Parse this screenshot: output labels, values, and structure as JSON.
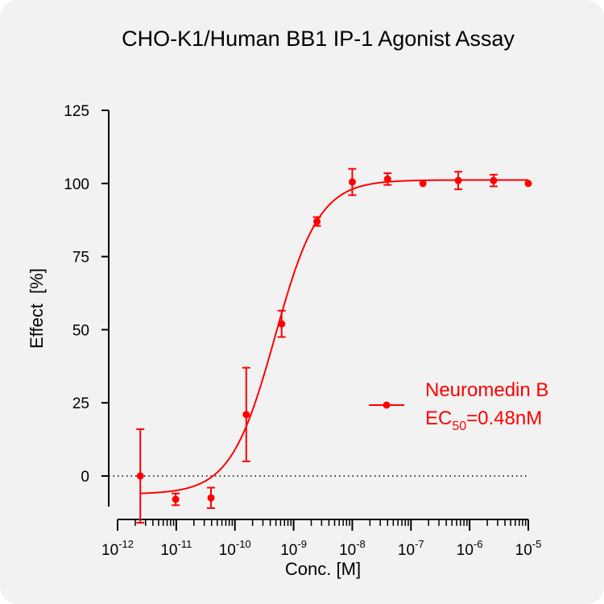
{
  "chart_data": {
    "type": "scatter",
    "title": "CHO-K1/Human BB1 IP-1 Agonist Assay",
    "xlabel": "Conc. [M]",
    "ylabel": "Effect  [%]",
    "x_scale": "log",
    "xlim_exp": [
      -12,
      -5
    ],
    "ylim": [
      -10,
      125
    ],
    "y_ticks": [
      0,
      25,
      50,
      75,
      100,
      125
    ],
    "x_tick_labels": [
      {
        "base": "10",
        "exp": "-12"
      },
      {
        "base": "10",
        "exp": "-11"
      },
      {
        "base": "10",
        "exp": "-10"
      },
      {
        "base": "10",
        "exp": "-9"
      },
      {
        "base": "10",
        "exp": "-8"
      },
      {
        "base": "10",
        "exp": "-7"
      },
      {
        "base": "10",
        "exp": "-6"
      },
      {
        "base": "10",
        "exp": "-5"
      }
    ],
    "baseline": 0,
    "series": [
      {
        "name": "Neuromedin B",
        "color": "#ff0000",
        "x": [
          2.44e-12,
          9.77e-12,
          3.91e-11,
          1.56e-10,
          6.25e-10,
          2.5e-09,
          1e-08,
          4e-08,
          1.6e-07,
          6.4e-07,
          2.56e-06,
          1e-05
        ],
        "y": [
          0,
          -8,
          -7.5,
          21,
          52,
          87,
          100.5,
          101.5,
          100,
          101,
          101,
          100
        ],
        "error": [
          16,
          2,
          3.5,
          16,
          4.5,
          1.5,
          4.5,
          2,
          0.5,
          3,
          2,
          0.5
        ],
        "fit": {
          "bottom": -6.2,
          "top": 101.2,
          "ec50": 4.8e-10,
          "hill": 1.15
        }
      }
    ],
    "legend": {
      "placement": "right",
      "entries": [
        {
          "name": "Neuromedin B",
          "ec50_prefix": "EC",
          "ec50_sub": "50",
          "ec50_value": "=0.48nM"
        }
      ]
    }
  }
}
